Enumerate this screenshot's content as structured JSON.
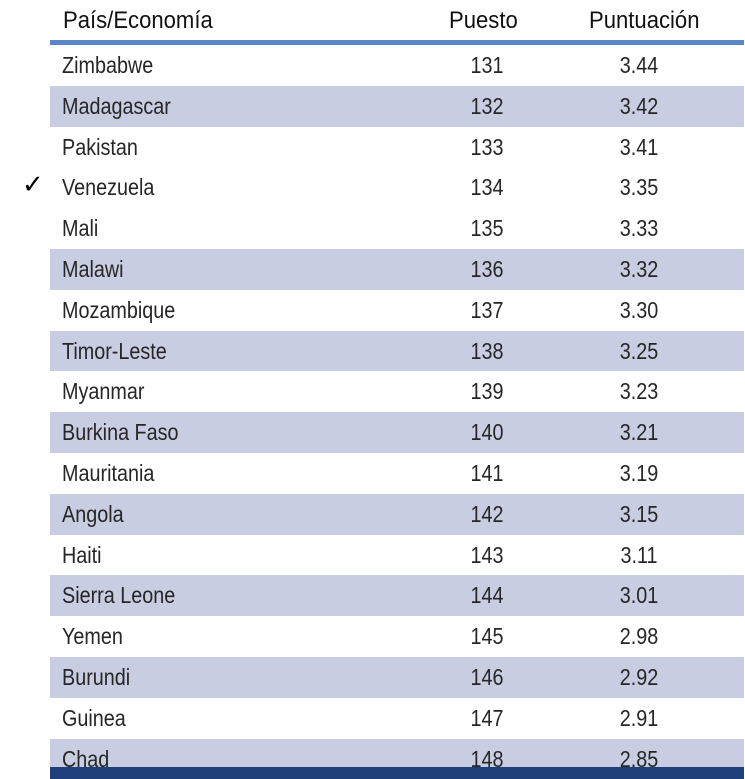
{
  "table": {
    "headers": {
      "country": "País/Economía",
      "rank": "Puesto",
      "score": "Puntuación"
    },
    "rows": [
      {
        "country": "Zimbabwe",
        "rank": "131",
        "score": "3.44",
        "shaded": false
      },
      {
        "country": "Madagascar",
        "rank": "132",
        "score": "3.42",
        "shaded": true
      },
      {
        "country": "Pakistan",
        "rank": "133",
        "score": "3.41",
        "shaded": false
      },
      {
        "country": "Venezuela",
        "rank": "134",
        "score": "3.35",
        "shaded": false
      },
      {
        "country": "Mali",
        "rank": "135",
        "score": "3.33",
        "shaded": false
      },
      {
        "country": "Malawi",
        "rank": "136",
        "score": "3.32",
        "shaded": true
      },
      {
        "country": "Mozambique",
        "rank": "137",
        "score": "3.30",
        "shaded": false
      },
      {
        "country": "Timor-Leste",
        "rank": "138",
        "score": "3.25",
        "shaded": true
      },
      {
        "country": "Myanmar",
        "rank": "139",
        "score": "3.23",
        "shaded": false
      },
      {
        "country": "Burkina Faso",
        "rank": "140",
        "score": "3.21",
        "shaded": true
      },
      {
        "country": "Mauritania",
        "rank": "141",
        "score": "3.19",
        "shaded": false
      },
      {
        "country": "Angola",
        "rank": "142",
        "score": "3.15",
        "shaded": true
      },
      {
        "country": "Haiti",
        "rank": "143",
        "score": "3.11",
        "shaded": false
      },
      {
        "country": "Sierra Leone",
        "rank": "144",
        "score": "3.01",
        "shaded": true
      },
      {
        "country": "Yemen",
        "rank": "145",
        "score": "2.98",
        "shaded": false
      },
      {
        "country": "Burundi",
        "rank": "146",
        "score": "2.92",
        "shaded": true
      },
      {
        "country": "Guinea",
        "rank": "147",
        "score": "2.91",
        "shaded": false
      },
      {
        "country": "Chad",
        "rank": "148",
        "score": "2.85",
        "shaded": true
      }
    ],
    "marker": {
      "symbol": "✓",
      "row_country": "Venezuela"
    }
  },
  "colors": {
    "header_rule": "#5a86c8",
    "row_shade": "#c8cde2",
    "bottom_band": "#1f3f7a"
  }
}
